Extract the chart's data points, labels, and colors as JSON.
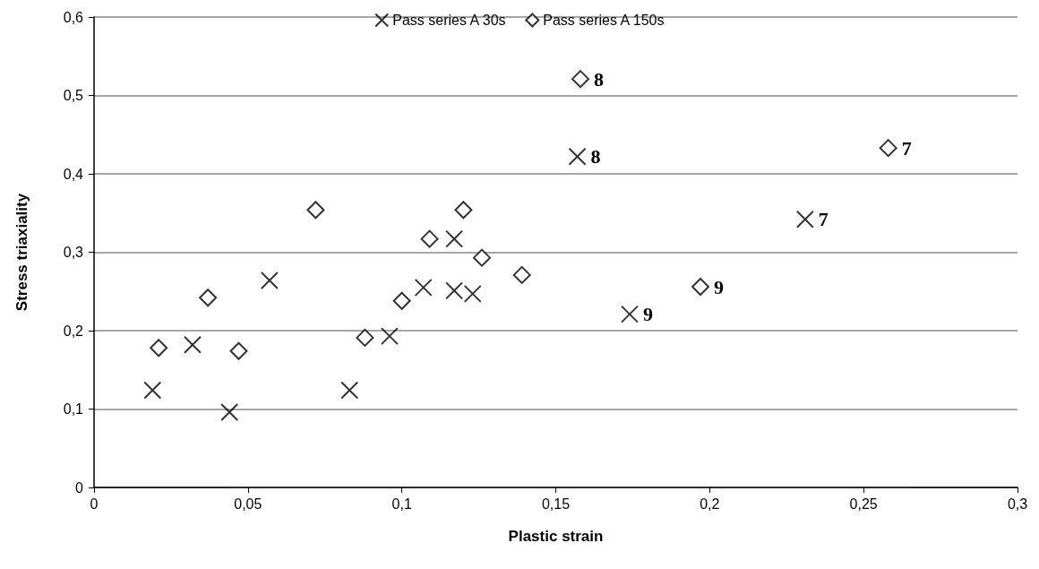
{
  "chart_data": {
    "type": "scatter",
    "xlabel": "Plastic strain",
    "ylabel": "Stress triaxiality",
    "series": [
      {
        "name": "Pass series A 30s",
        "color": "#000000",
        "marker": "cross",
        "x": [
          0.019,
          0.032,
          0.044,
          0.057,
          0.083,
          0.096,
          0.107,
          0.117,
          0.117,
          0.123,
          0.157,
          0.174,
          0.231
        ],
        "values": [
          0.124,
          0.182,
          0.096,
          0.264,
          0.124,
          0.193,
          0.255,
          0.317,
          0.251,
          0.247,
          0.422,
          0.221,
          0.342
        ]
      },
      {
        "name": "Pass series A 150s",
        "color": "#000000",
        "marker": "diamond",
        "x": [
          0.021,
          0.037,
          0.047,
          0.072,
          0.088,
          0.1,
          0.109,
          0.12,
          0.126,
          0.139,
          0.158,
          0.197,
          0.258
        ],
        "values": [
          0.178,
          0.242,
          0.174,
          0.354,
          0.191,
          0.238,
          0.317,
          0.354,
          0.293,
          0.271,
          0.521,
          0.256,
          0.433
        ]
      }
    ],
    "annotations": [
      {
        "text": "8",
        "x": 0.157,
        "y": 0.422
      },
      {
        "text": "9",
        "x": 0.174,
        "y": 0.221
      },
      {
        "text": "7",
        "x": 0.231,
        "y": 0.342
      },
      {
        "text": "8",
        "x": 0.158,
        "y": 0.521
      },
      {
        "text": "9",
        "x": 0.197,
        "y": 0.256
      },
      {
        "text": "7",
        "x": 0.258,
        "y": 0.433
      }
    ],
    "xlim": [
      0,
      0.3
    ],
    "xticks": [
      0,
      {
        "value": 0.05,
        "label": "0,05"
      },
      {
        "value": 0.1,
        "label": "0,1"
      },
      {
        "value": 0.15,
        "label": "0,15"
      },
      {
        "value": 0.2,
        "label": "0,2"
      },
      {
        "value": 0.25,
        "label": "0,25"
      },
      {
        "value": 0.3,
        "label": "0,3"
      }
    ],
    "ylim": [
      0,
      0.6
    ],
    "yticks": [
      0,
      {
        "value": 0.1,
        "label": "0,1"
      },
      {
        "value": 0.2,
        "label": "0,2"
      },
      {
        "value": 0.3,
        "label": "0,3"
      },
      {
        "value": 0.4,
        "label": "0,4"
      },
      {
        "value": 0.5,
        "label": "0,5"
      },
      {
        "value": 0.6,
        "label": "0,6"
      }
    ],
    "grid": "y",
    "legend": "top"
  }
}
